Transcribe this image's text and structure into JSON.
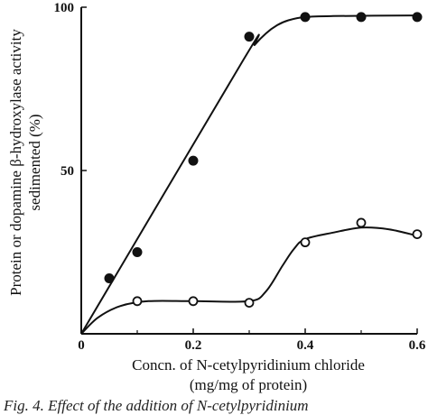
{
  "chart_data": {
    "type": "scatter",
    "xlabel": "Concn. of N-cetylpyridinium chloride",
    "xlabel_line2": "(mg/mg of protein)",
    "ylabel": "Protein or dopamine β-hydroxylase activity",
    "ylabel_line2": "sedimented (%)",
    "xlim": [
      0,
      0.6
    ],
    "ylim": [
      0,
      100
    ],
    "x_ticks": [
      0,
      0.2,
      0.4,
      0.6
    ],
    "x_tick_labels": [
      "0",
      "0.2",
      "0.4",
      "0.6"
    ],
    "y_ticks": [
      50,
      100
    ],
    "y_tick_labels": [
      "50",
      "100"
    ],
    "grid": false,
    "series": [
      {
        "marker": "filled-circle",
        "x": [
          0.05,
          0.1,
          0.2,
          0.3,
          0.4,
          0.5,
          0.6
        ],
        "y": [
          17,
          25,
          53,
          91,
          97,
          97,
          97
        ],
        "curve_x": [
          0,
          0.29,
          0.31,
          0.33,
          0.35,
          0.37,
          0.4,
          0.45,
          0.6
        ],
        "curve_y": [
          0,
          84,
          88.5,
          92,
          94.5,
          96,
          97,
          97.3,
          97.5
        ]
      },
      {
        "marker": "open-circle",
        "x": [
          0.1,
          0.2,
          0.3,
          0.4,
          0.5,
          0.6
        ],
        "y": [
          10,
          10,
          9.5,
          28,
          34,
          30.5
        ],
        "curve_x": [
          0,
          0.03,
          0.07,
          0.12,
          0.2,
          0.3,
          0.33,
          0.36,
          0.38,
          0.4,
          0.45,
          0.5,
          0.55,
          0.6
        ],
        "curve_y": [
          0,
          5,
          8.5,
          10,
          10,
          10,
          13,
          21,
          26,
          29,
          31,
          32.5,
          32,
          30
        ]
      }
    ]
  },
  "caption": "Fig. 4. Effect of the addition of N-cetylpyridinium"
}
